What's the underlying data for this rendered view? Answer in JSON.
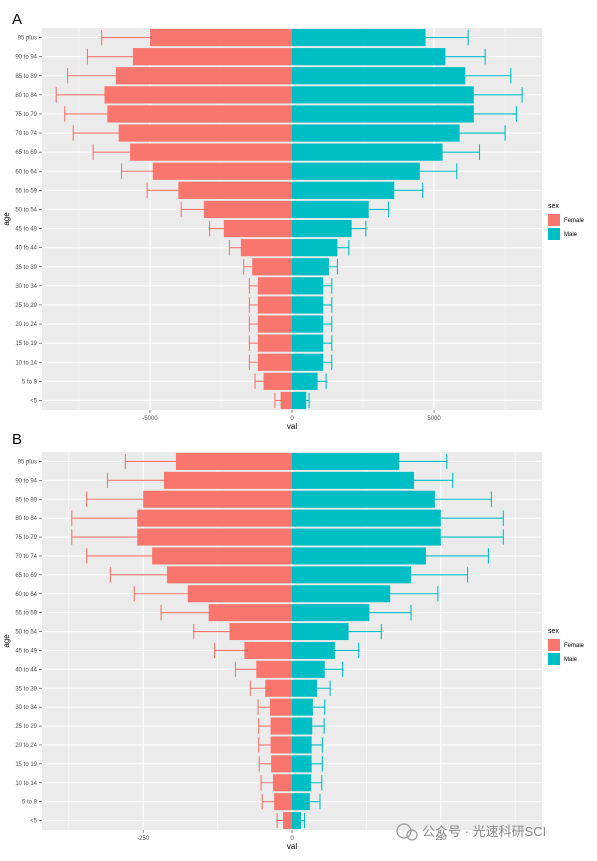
{
  "chart_data": [
    {
      "panel": "A",
      "type": "bar",
      "orientation": "horizontal",
      "xlabel": "val",
      "ylabel": "age",
      "xlim": [
        -8800,
        8800
      ],
      "xticks": [
        -5000,
        0,
        5000
      ],
      "xtick_labels": [
        "-5000",
        "0",
        "5000"
      ],
      "grid": true,
      "legend": {
        "title": "sex",
        "position": "right",
        "entries": [
          "Female",
          "Male"
        ]
      },
      "categories": [
        "95 plus",
        "90 to 94",
        "85 to 89",
        "80 to 84",
        "75 to 79",
        "70 to 74",
        "65 to 69",
        "60 to 64",
        "55 to 59",
        "50 to 54",
        "45 to 49",
        "40 to 44",
        "35 to 39",
        "30 to 34",
        "25 to 29",
        "20 to 24",
        "15 to 19",
        "10 to 14",
        "5 to 9",
        "<5"
      ],
      "series": [
        {
          "name": "Female",
          "color": "#F8766D",
          "values": [
            -5000,
            -5600,
            -6200,
            -6600,
            -6500,
            -6100,
            -5700,
            -4900,
            -4000,
            -3100,
            -2400,
            -1800,
            -1400,
            -1200,
            -1200,
            -1200,
            -1200,
            -1200,
            -1000,
            -400
          ],
          "error": [
            1700,
            1600,
            1700,
            1700,
            1500,
            1600,
            1300,
            1100,
            1100,
            800,
            500,
            400,
            300,
            300,
            300,
            300,
            300,
            300,
            300,
            200
          ]
        },
        {
          "name": "Male",
          "color": "#00BFC4",
          "values": [
            4700,
            5400,
            6100,
            6400,
            6400,
            5900,
            5300,
            4500,
            3600,
            2700,
            2100,
            1600,
            1300,
            1100,
            1100,
            1100,
            1100,
            1100,
            900,
            500
          ],
          "error": [
            1500,
            1400,
            1600,
            1700,
            1500,
            1600,
            1300,
            1300,
            1000,
            700,
            500,
            400,
            300,
            300,
            300,
            300,
            300,
            300,
            300,
            100
          ]
        }
      ]
    },
    {
      "panel": "B",
      "type": "bar",
      "orientation": "horizontal",
      "xlabel": "val",
      "ylabel": "age",
      "xlim": [
        -420,
        420
      ],
      "xticks": [
        -250,
        0,
        250
      ],
      "xtick_labels": [
        "-250",
        "0",
        "250"
      ],
      "grid": true,
      "legend": {
        "title": "sex",
        "position": "right",
        "entries": [
          "Female",
          "Male"
        ]
      },
      "categories": [
        "95 plus",
        "90 to 94",
        "85 to 89",
        "80 to 84",
        "75 to 79",
        "70 to 74",
        "65 to 69",
        "60 to 64",
        "55 to 59",
        "50 to 54",
        "45 to 49",
        "40 to 44",
        "35 to 39",
        "30 to 34",
        "25 to 29",
        "20 to 24",
        "15 to 19",
        "10 to 14",
        "5 to 9",
        "<5"
      ],
      "series": [
        {
          "name": "Female",
          "color": "#F8766D",
          "values": [
            -195,
            -215,
            -250,
            -260,
            -260,
            -235,
            -210,
            -175,
            -140,
            -105,
            -80,
            -60,
            -45,
            -37,
            -36,
            -36,
            -35,
            -32,
            -30,
            -15
          ],
          "error": [
            85,
            95,
            95,
            110,
            110,
            110,
            95,
            90,
            80,
            60,
            50,
            35,
            25,
            20,
            20,
            20,
            20,
            20,
            20,
            10
          ]
        },
        {
          "name": "Male",
          "color": "#00BFC4",
          "values": [
            180,
            205,
            240,
            250,
            250,
            225,
            200,
            165,
            130,
            95,
            72,
            55,
            42,
            35,
            34,
            33,
            33,
            32,
            30,
            15
          ],
          "error": [
            80,
            65,
            95,
            105,
            105,
            105,
            95,
            80,
            70,
            55,
            40,
            30,
            22,
            20,
            20,
            18,
            18,
            18,
            17,
            6
          ]
        }
      ]
    }
  ],
  "watermark": "公众号 · 光速科研SCI"
}
